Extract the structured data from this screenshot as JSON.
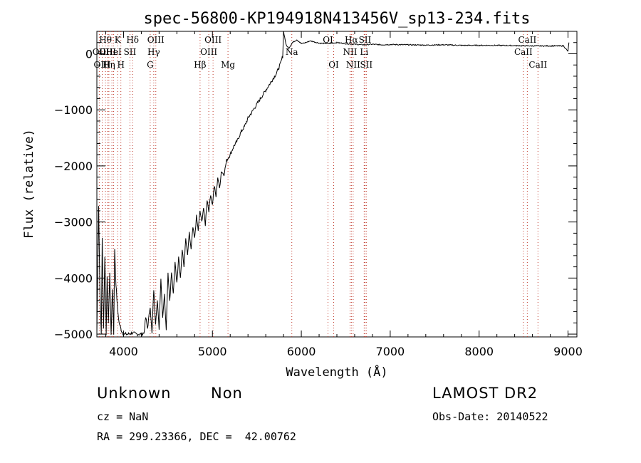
{
  "chart_data": {
    "type": "line",
    "title": "spec-56800-KP194918N413456V_sp13-234.fits",
    "xlabel": "Wavelength (Å)",
    "ylabel": "Flux (relative)",
    "xlim": [
      3700,
      9100
    ],
    "ylim": [
      -5050,
      400
    ],
    "x_ticks": [
      4000,
      5000,
      6000,
      7000,
      8000,
      9000
    ],
    "y_ticks": [
      0,
      -1000,
      -2000,
      -3000,
      -4000,
      -5000
    ],
    "x_tick_labels": [
      "4000",
      "5000",
      "6000",
      "7000",
      "8000",
      "9000"
    ],
    "y_tick_labels": [
      "0",
      "−1000",
      "−2000",
      "−3000",
      "−4000",
      "−5000"
    ],
    "grid": false,
    "series": [
      {
        "values": [
          [
            3700,
            -5000
          ],
          [
            3720,
            -2700
          ],
          [
            3735,
            -4300
          ],
          [
            3750,
            -5000
          ],
          [
            3760,
            -3300
          ],
          [
            3775,
            -4900
          ],
          [
            3790,
            -3600
          ],
          [
            3805,
            -5000
          ],
          [
            3815,
            -4000
          ],
          [
            3830,
            -4800
          ],
          [
            3845,
            -3900
          ],
          [
            3860,
            -5000
          ],
          [
            3875,
            -4200
          ],
          [
            3890,
            -5000
          ],
          [
            3900,
            -3500
          ],
          [
            3915,
            -4100
          ],
          [
            3930,
            -4500
          ],
          [
            3950,
            -4800
          ],
          [
            3980,
            -4950
          ],
          [
            4000,
            -5000
          ],
          [
            4050,
            -5000
          ],
          [
            4100,
            -4980
          ],
          [
            4150,
            -5000
          ],
          [
            4200,
            -5000
          ],
          [
            4230,
            -4980
          ],
          [
            4250,
            -4700
          ],
          [
            4270,
            -4900
          ],
          [
            4300,
            -4500
          ],
          [
            4320,
            -5000
          ],
          [
            4340,
            -4200
          ],
          [
            4360,
            -4800
          ],
          [
            4380,
            -4400
          ],
          [
            4400,
            -4900
          ],
          [
            4420,
            -4000
          ],
          [
            4440,
            -4700
          ],
          [
            4460,
            -4300
          ],
          [
            4480,
            -4900
          ],
          [
            4500,
            -3900
          ],
          [
            4520,
            -4400
          ],
          [
            4540,
            -3900
          ],
          [
            4560,
            -4300
          ],
          [
            4580,
            -3700
          ],
          [
            4600,
            -4100
          ],
          [
            4620,
            -3600
          ],
          [
            4640,
            -4000
          ],
          [
            4660,
            -3500
          ],
          [
            4680,
            -3800
          ],
          [
            4700,
            -3300
          ],
          [
            4720,
            -3600
          ],
          [
            4740,
            -3200
          ],
          [
            4760,
            -3500
          ],
          [
            4780,
            -3100
          ],
          [
            4800,
            -3300
          ],
          [
            4820,
            -2900
          ],
          [
            4840,
            -3150
          ],
          [
            4860,
            -2800
          ],
          [
            4880,
            -3000
          ],
          [
            4900,
            -2750
          ],
          [
            4920,
            -3050
          ],
          [
            4940,
            -2600
          ],
          [
            4960,
            -2800
          ],
          [
            4980,
            -2500
          ],
          [
            5000,
            -2700
          ],
          [
            5020,
            -2350
          ],
          [
            5040,
            -2550
          ],
          [
            5060,
            -2200
          ],
          [
            5080,
            -2400
          ],
          [
            5100,
            -2100
          ],
          [
            5130,
            -2150
          ],
          [
            5160,
            -1900
          ],
          [
            5200,
            -1800
          ],
          [
            5240,
            -1650
          ],
          [
            5280,
            -1550
          ],
          [
            5320,
            -1400
          ],
          [
            5360,
            -1300
          ],
          [
            5400,
            -1150
          ],
          [
            5440,
            -1050
          ],
          [
            5480,
            -950
          ],
          [
            5520,
            -850
          ],
          [
            5560,
            -750
          ],
          [
            5600,
            -650
          ],
          [
            5640,
            -550
          ],
          [
            5680,
            -450
          ],
          [
            5720,
            -350
          ],
          [
            5760,
            -200
          ],
          [
            5790,
            -50
          ],
          [
            5800,
            400
          ],
          [
            5830,
            150
          ],
          [
            5860,
            100
          ],
          [
            5900,
            200
          ],
          [
            5950,
            250
          ],
          [
            6000,
            180
          ],
          [
            6050,
            200
          ],
          [
            6100,
            230
          ],
          [
            6150,
            210
          ],
          [
            6200,
            190
          ],
          [
            6300,
            180
          ],
          [
            6400,
            200
          ],
          [
            6500,
            180
          ],
          [
            6600,
            170
          ],
          [
            6700,
            160
          ],
          [
            6800,
            170
          ],
          [
            6900,
            160
          ],
          [
            7000,
            165
          ],
          [
            7200,
            160
          ],
          [
            7400,
            155
          ],
          [
            7600,
            160
          ],
          [
            7800,
            150
          ],
          [
            8000,
            150
          ],
          [
            8200,
            150
          ],
          [
            8400,
            145
          ],
          [
            8600,
            140
          ],
          [
            8800,
            140
          ],
          [
            8950,
            140
          ],
          [
            9000,
            40
          ],
          [
            9010,
            200
          ]
        ]
      }
    ],
    "lines": [
      {
        "x": 3727,
        "label": "OII",
        "row": 1
      },
      {
        "x": 3760,
        "label": "OIII",
        "row": 2
      },
      {
        "x": 3797,
        "label": "Hθ",
        "row": 0
      },
      {
        "x": 3820,
        "label": "OIII",
        "row": 1
      },
      {
        "x": 3835,
        "label": "Hη",
        "row": 2
      },
      {
        "x": 3869,
        "label": "He",
        "row": 1
      },
      {
        "x": 3889,
        "label": "HeI",
        "row": 1
      },
      {
        "x": 3934,
        "label": "K",
        "row": 0
      },
      {
        "x": 3970,
        "label": "H",
        "row": 2
      },
      {
        "x": 4072,
        "label": "SII",
        "row": 1
      },
      {
        "x": 4102,
        "label": "Hδ",
        "row": 0
      },
      {
        "x": 4300,
        "label": "G",
        "row": 2
      },
      {
        "x": 4340,
        "label": "Hγ",
        "row": 1
      },
      {
        "x": 4363,
        "label": "OIII",
        "row": 0
      },
      {
        "x": 4861,
        "label": "Hβ",
        "row": 2
      },
      {
        "x": 4959,
        "label": "OIII",
        "row": 1
      },
      {
        "x": 5007,
        "label": "OIII",
        "row": 0
      },
      {
        "x": 5175,
        "label": "Mg",
        "row": 2
      },
      {
        "x": 5893,
        "label": "Na",
        "row": 1
      },
      {
        "x": 6300,
        "label": "OI",
        "row": 0
      },
      {
        "x": 6364,
        "label": "OI",
        "row": 2
      },
      {
        "x": 6548,
        "label": "NII",
        "row": 1
      },
      {
        "x": 6563,
        "label": "Hα",
        "row": 0
      },
      {
        "x": 6583,
        "label": "NII",
        "row": 2
      },
      {
        "x": 6707,
        "label": "Li",
        "row": 1
      },
      {
        "x": 6716,
        "label": "SII",
        "row": 0
      },
      {
        "x": 6731,
        "label": "SII",
        "row": 2
      },
      {
        "x": 8498,
        "label": "CaII",
        "row": 1
      },
      {
        "x": 8542,
        "label": "CaII",
        "row": 0
      },
      {
        "x": 8662,
        "label": "CaII",
        "row": 2
      }
    ]
  },
  "info": {
    "class": "Unknown",
    "subclass": "Non",
    "survey": "LAMOST DR2",
    "cz": "cz = NaN",
    "obs_date": "Obs-Date: 20140522",
    "coords": "RA = 299.23366, DEC =  42.00762"
  }
}
